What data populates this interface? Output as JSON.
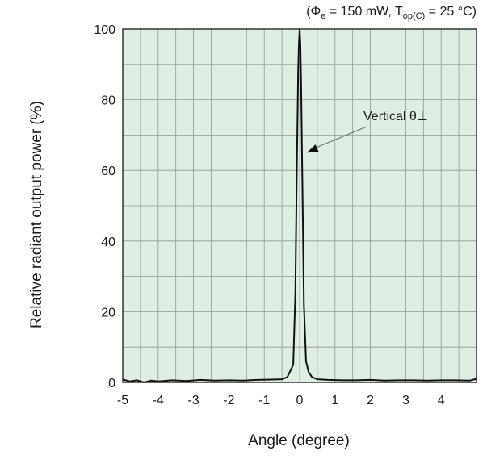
{
  "chart_data": {
    "type": "line",
    "conditions": {
      "prefix": "(Φ",
      "phi_sub": "e",
      "mid": " = 150 mW, T",
      "temp_sub": "op(C)",
      "suffix": " = 25 °C)"
    },
    "xlabel": "Angle (degree)",
    "ylabel": "Relative radiant output power (%)",
    "xlim": [
      -5,
      5
    ],
    "ylim": [
      0,
      100
    ],
    "x_ticks": [
      -5,
      -4,
      -3,
      -2,
      -1,
      0,
      1,
      2,
      3,
      4
    ],
    "y_ticks": [
      0,
      20,
      40,
      60,
      80,
      100
    ],
    "grid": true,
    "background_color": "#dfeee2",
    "grid_color": "#8e9a90",
    "line_color": "#111111",
    "series": [
      {
        "name": "Vertical θ⊥",
        "x": [
          -5.0,
          -4.8,
          -4.6,
          -4.4,
          -4.2,
          -4.0,
          -3.6,
          -3.2,
          -2.8,
          -2.4,
          -2.0,
          -1.6,
          -1.2,
          -0.8,
          -0.5,
          -0.35,
          -0.25,
          -0.18,
          -0.12,
          -0.08,
          -0.04,
          -0.02,
          0.0,
          0.02,
          0.04,
          0.08,
          0.12,
          0.18,
          0.25,
          0.35,
          0.5,
          0.8,
          1.2,
          1.6,
          2.0,
          2.4,
          2.8,
          3.2,
          3.6,
          4.0,
          4.4,
          4.8,
          5.0
        ],
        "y": [
          0.8,
          0.3,
          0.6,
          0.0,
          0.5,
          0.3,
          0.6,
          0.4,
          0.7,
          0.5,
          0.6,
          0.5,
          0.7,
          0.8,
          0.9,
          1.5,
          3.5,
          5.0,
          25.0,
          60.0,
          88.0,
          96.0,
          100.0,
          96.0,
          85.0,
          55.0,
          22.0,
          6.0,
          3.0,
          1.5,
          0.9,
          0.7,
          0.6,
          0.6,
          0.7,
          0.5,
          0.6,
          0.6,
          0.5,
          0.6,
          0.6,
          0.5,
          1.0
        ]
      }
    ],
    "annotation": {
      "text": "Vertical θ⊥",
      "points_to": [
        0.2,
        65
      ]
    }
  }
}
